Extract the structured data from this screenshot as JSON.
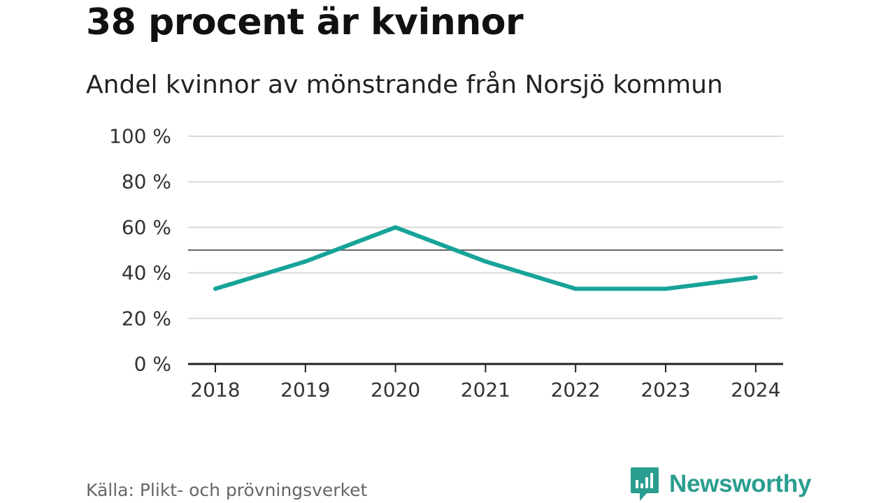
{
  "header": {
    "title": "38 procent är kvinnor",
    "subtitle": "Andel kvinnor av mönstrande från Norsjö kommun"
  },
  "footer": {
    "source": "Källa: Plikt- och prövningsverket",
    "brand": "Newsworthy"
  },
  "colors": {
    "line": "#17a398",
    "grid": "#d9d9d9",
    "reference": "#666666",
    "axis": "#222222",
    "brand": "#2a9d8f"
  },
  "chart_data": {
    "type": "line",
    "title": "Andel kvinnor av mönstrande från Norsjö kommun",
    "xlabel": "",
    "ylabel": "",
    "categories": [
      "2018",
      "2019",
      "2020",
      "2021",
      "2022",
      "2023",
      "2024"
    ],
    "series": [
      {
        "name": "Andel kvinnor",
        "values": [
          33,
          45,
          60,
          45,
          33,
          33,
          38
        ]
      }
    ],
    "ylim": [
      0,
      100
    ],
    "yticks": [
      0,
      20,
      40,
      60,
      80,
      100
    ],
    "ytick_labels": [
      "0 %",
      "20 %",
      "40 %",
      "60 %",
      "80 %",
      "100 %"
    ],
    "reference_line": 50,
    "grid": true,
    "legend": "none"
  }
}
